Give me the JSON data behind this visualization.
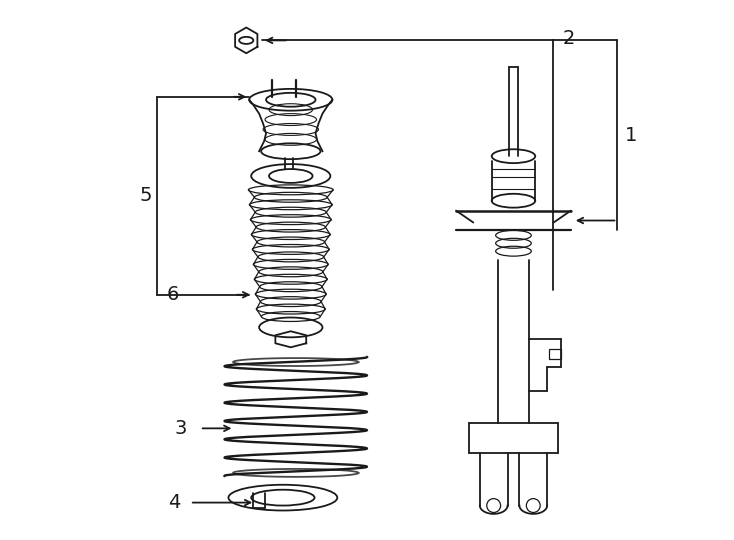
{
  "background_color": "#ffffff",
  "line_color": "#1a1a1a",
  "label_fontsize": 14,
  "figsize": [
    7.34,
    5.4
  ],
  "dpi": 100
}
